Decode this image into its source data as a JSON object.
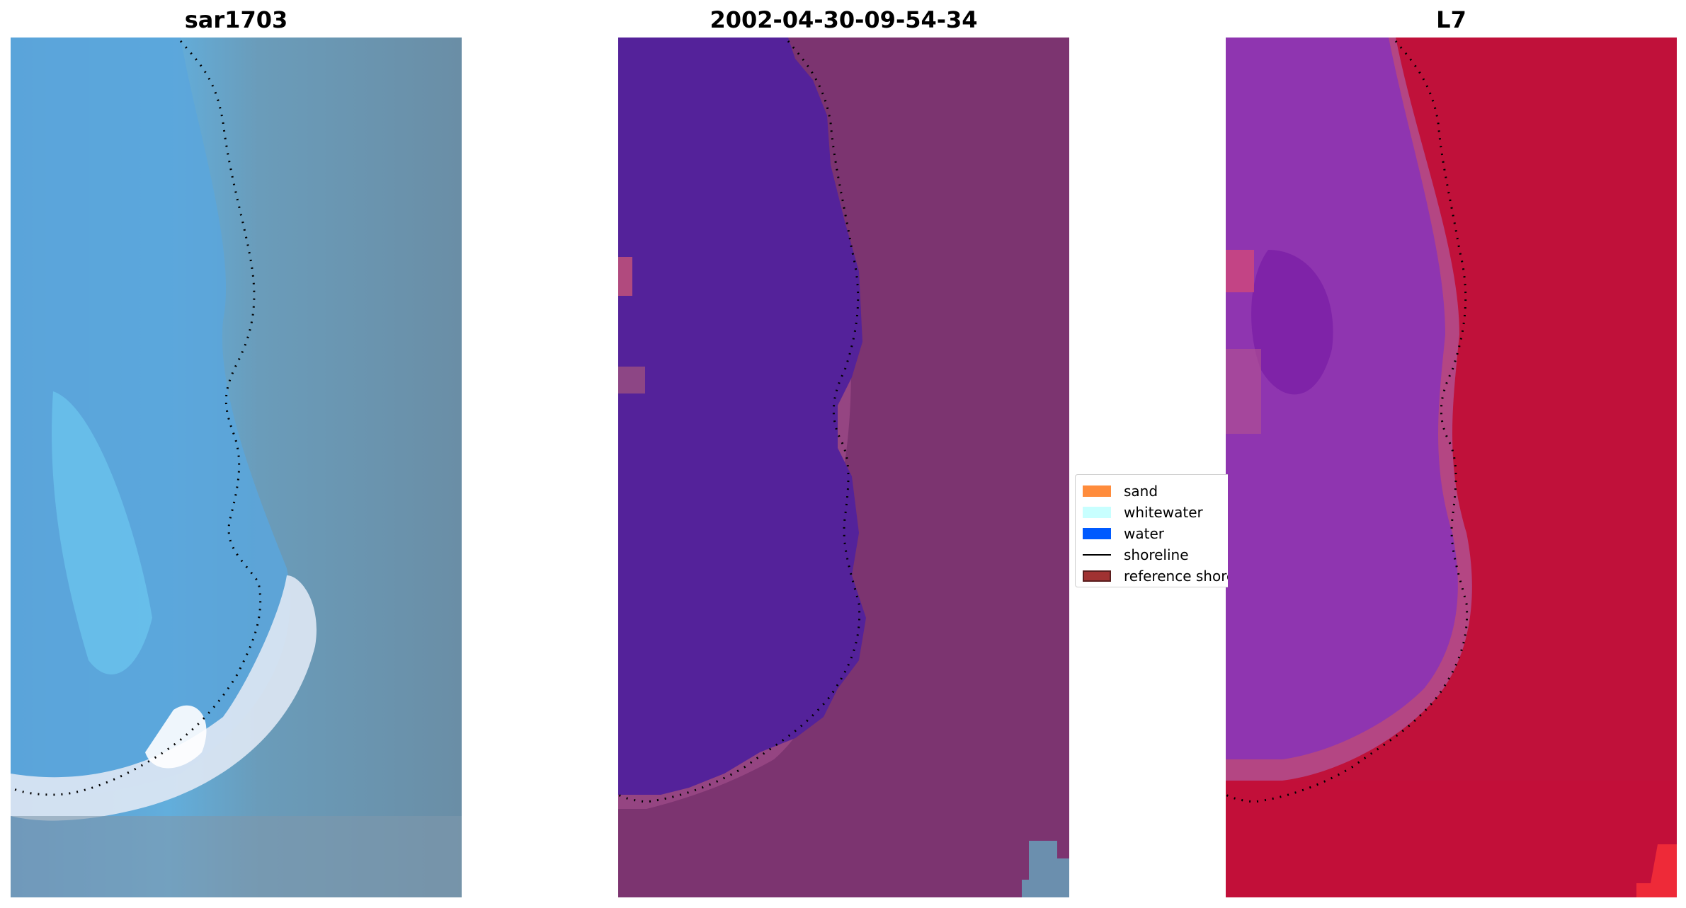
{
  "panels": [
    {
      "title": "sar1703"
    },
    {
      "title": "2002-04-30-09-54-34"
    },
    {
      "title": "L7"
    }
  ],
  "legend": {
    "items": [
      {
        "label": "sand",
        "kind": "patch",
        "color": "#ff8c3c",
        "edge": "#ff8c3c"
      },
      {
        "label": "whitewater",
        "kind": "patch",
        "color": "#c8ffff",
        "edge": "#c8ffff"
      },
      {
        "label": "water",
        "kind": "patch",
        "color": "#005aff",
        "edge": "#005aff"
      },
      {
        "label": "shoreline",
        "kind": "line",
        "color": "#000000"
      },
      {
        "label": "reference shoreline buffer",
        "kind": "patch",
        "color": "#a03232",
        "edge": "#5a1e1e"
      }
    ]
  },
  "colors": {
    "rgb_base": "#6a8fa6",
    "rgb_water": "#5aa4d8",
    "classified_water": "#54229a",
    "classified_land": "#7c3470",
    "ndwi_water": "#8f35b0",
    "ndwi_land": "#c0113a"
  }
}
